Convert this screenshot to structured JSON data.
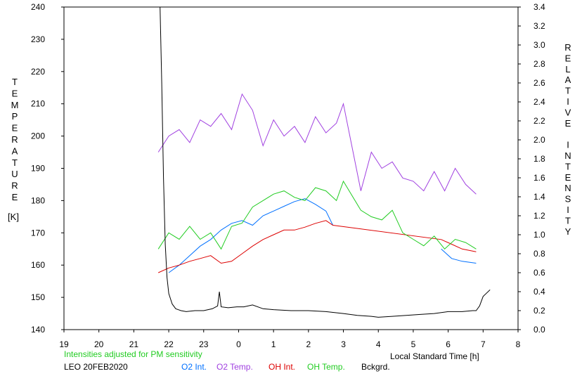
{
  "chart_data": {
    "type": "line",
    "station": "LEO 20FEB2020",
    "note": "Intensities adjusted for PM sensitivity",
    "xlabel": "Local Standard Time [h]",
    "ylabel_left_letters": [
      "T",
      "E",
      "M",
      "P",
      "E",
      "R",
      "A",
      "T",
      "U",
      "R",
      "E"
    ],
    "ylabel_left_unit": "[K]",
    "ylabel_right_letters": [
      "R",
      "E",
      "L",
      "A",
      "T",
      "I",
      "V",
      "E",
      "",
      "I",
      "N",
      "T",
      "E",
      "N",
      "S",
      "I",
      "T",
      "Y"
    ],
    "x_range": [
      19,
      32
    ],
    "x_tick_labels": [
      "19",
      "20",
      "21",
      "22",
      "23",
      "0",
      "1",
      "2",
      "3",
      "4",
      "5",
      "6",
      "7",
      "8"
    ],
    "ylim_left": [
      140,
      240
    ],
    "y_left_ticks": [
      "140",
      "150",
      "160",
      "170",
      "180",
      "190",
      "200",
      "210",
      "220",
      "230",
      "240"
    ],
    "ylim_right": [
      0,
      3.4
    ],
    "y_right_ticks": [
      "0.0",
      "0.2",
      "0.4",
      "0.6",
      "0.8",
      "1.0",
      "1.2",
      "1.4",
      "1.6",
      "1.8",
      "2.0",
      "2.2",
      "2.4",
      "2.6",
      "2.8",
      "3.0",
      "3.2",
      "3.4"
    ],
    "series": [
      {
        "name": "O2 Int.",
        "color": "#0070ff",
        "axis": "right",
        "x": [
          22.0,
          22.3,
          22.6,
          22.9,
          23.2,
          23.5,
          23.8,
          24.1,
          24.4,
          24.7,
          25.0,
          25.3,
          25.6,
          25.9,
          26.2,
          26.5,
          26.7,
          28.0,
          28.3,
          28.6,
          28.9,
          29.2,
          29.5,
          29.8,
          30.1,
          30.4,
          30.8
        ],
        "y": [
          0.6,
          0.68,
          0.78,
          0.88,
          0.95,
          1.05,
          1.12,
          1.15,
          1.1,
          1.2,
          1.25,
          1.3,
          1.35,
          1.38,
          1.32,
          1.25,
          1.1,
          null,
          null,
          null,
          null,
          null,
          null,
          0.85,
          0.75,
          0.72,
          0.7
        ]
      },
      {
        "name": "O2 Temp.",
        "color": "#a040e0",
        "axis": "left",
        "x": [
          21.7,
          22.0,
          22.3,
          22.6,
          22.9,
          23.2,
          23.5,
          23.8,
          24.1,
          24.4,
          24.7,
          25.0,
          25.3,
          25.6,
          25.9,
          26.2,
          26.5,
          26.8,
          27.0,
          27.5,
          27.8,
          28.1,
          28.4,
          28.7,
          29.0,
          29.3,
          29.6,
          29.9,
          30.2,
          30.5,
          30.8
        ],
        "y": [
          195,
          200,
          202,
          198,
          205,
          203,
          207,
          202,
          213,
          208,
          197,
          205,
          200,
          203,
          198,
          206,
          201,
          204,
          210,
          183,
          195,
          190,
          192,
          187,
          186,
          183,
          189,
          183,
          190,
          185,
          182
        ]
      },
      {
        "name": "OH Int.",
        "color": "#dd0000",
        "axis": "right",
        "x": [
          21.7,
          22.0,
          22.3,
          22.6,
          22.9,
          23.2,
          23.5,
          23.8,
          24.1,
          24.4,
          24.7,
          25.0,
          25.3,
          25.6,
          25.9,
          26.2,
          26.5,
          26.7,
          29.8,
          30.1,
          30.4,
          30.8
        ],
        "y": [
          0.6,
          0.65,
          0.68,
          0.72,
          0.75,
          0.78,
          0.7,
          0.72,
          0.8,
          0.88,
          0.95,
          1.0,
          1.05,
          1.05,
          1.08,
          1.12,
          1.15,
          1.1,
          0.95,
          0.9,
          0.85,
          0.82
        ]
      },
      {
        "name": "OH Temp.",
        "color": "#22cc22",
        "axis": "left",
        "x": [
          21.7,
          22.0,
          22.3,
          22.6,
          22.9,
          23.2,
          23.5,
          23.8,
          24.1,
          24.4,
          24.7,
          25.0,
          25.3,
          25.6,
          25.9,
          26.2,
          26.5,
          26.8,
          27.0,
          27.5,
          27.8,
          28.1,
          28.4,
          28.7,
          29.0,
          29.3,
          29.6,
          29.9,
          30.2,
          30.5,
          30.8
        ],
        "y": [
          165,
          170,
          168,
          172,
          168,
          170,
          165,
          172,
          173,
          178,
          180,
          182,
          183,
          181,
          180,
          184,
          183,
          180,
          186,
          177,
          175,
          174,
          177,
          170,
          168,
          166,
          169,
          165,
          168,
          167,
          165
        ]
      },
      {
        "name": "Bckgrd.",
        "color": "#000000",
        "axis": "right",
        "x": [
          21.75,
          21.8,
          21.85,
          21.9,
          21.95,
          22.0,
          22.1,
          22.2,
          22.35,
          22.5,
          22.75,
          23.0,
          23.25,
          23.4,
          23.45,
          23.5,
          23.7,
          23.95,
          24.15,
          24.4,
          24.7,
          25.0,
          25.5,
          26.0,
          26.5,
          27.0,
          27.4,
          27.8,
          28.0,
          28.4,
          28.8,
          29.2,
          29.6,
          30.0,
          30.4,
          30.7,
          30.8,
          30.9,
          31.0,
          31.2
        ],
        "y": [
          3.4,
          2.6,
          1.6,
          0.9,
          0.55,
          0.38,
          0.27,
          0.22,
          0.2,
          0.19,
          0.2,
          0.2,
          0.22,
          0.25,
          0.4,
          0.24,
          0.23,
          0.24,
          0.24,
          0.26,
          0.22,
          0.21,
          0.2,
          0.2,
          0.19,
          0.17,
          0.15,
          0.14,
          0.13,
          0.14,
          0.15,
          0.16,
          0.17,
          0.19,
          0.19,
          0.2,
          0.2,
          0.25,
          0.35,
          0.42
        ]
      }
    ]
  }
}
